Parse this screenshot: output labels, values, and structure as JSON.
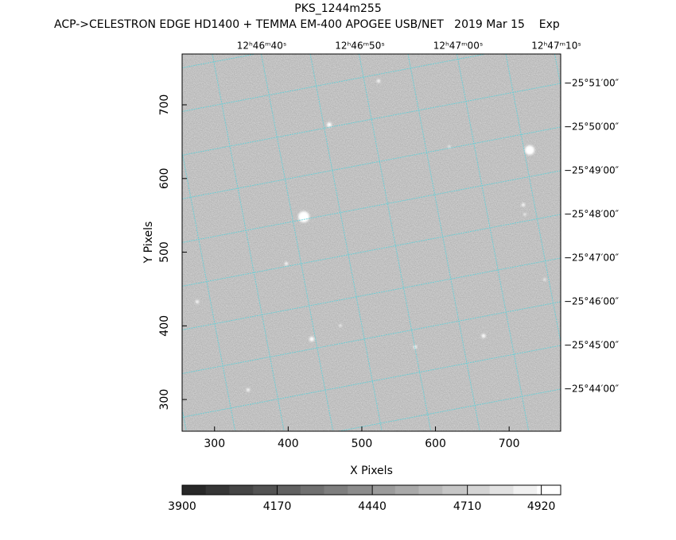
{
  "title": "PKS_1244m255",
  "subtitle": "ACP->CELESTRON EDGE HD1400 + TEMMA EM-400 APOGEE USB/NET   2019 Mar 15    Exp",
  "chart_data": {
    "type": "image",
    "xlabel": "X Pixels",
    "ylabel": "Y Pixels",
    "xlim": [
      256,
      770
    ],
    "ylim": [
      257,
      769
    ],
    "xticks": [
      300,
      400,
      500,
      600,
      700
    ],
    "yticks": [
      300,
      400,
      500,
      600,
      700
    ],
    "ra_labels": [
      "12ʰ46ᵐ40ˢ",
      "12ʰ46ᵐ50ˢ",
      "12ʰ47ᵐ00ˢ",
      "12ʰ47ᵐ10ˢ"
    ],
    "dec_labels": [
      "−25°51′00″",
      "−25°50′00″",
      "−25°49′00″",
      "−25°48′00″",
      "−25°47′00″",
      "−25°46′00″",
      "−25°45′00″",
      "−25°44′00″"
    ],
    "colorbar": {
      "lim": [
        3900,
        4975
      ],
      "ticks": [
        3900,
        4170,
        4440,
        4710,
        4920
      ]
    }
  }
}
